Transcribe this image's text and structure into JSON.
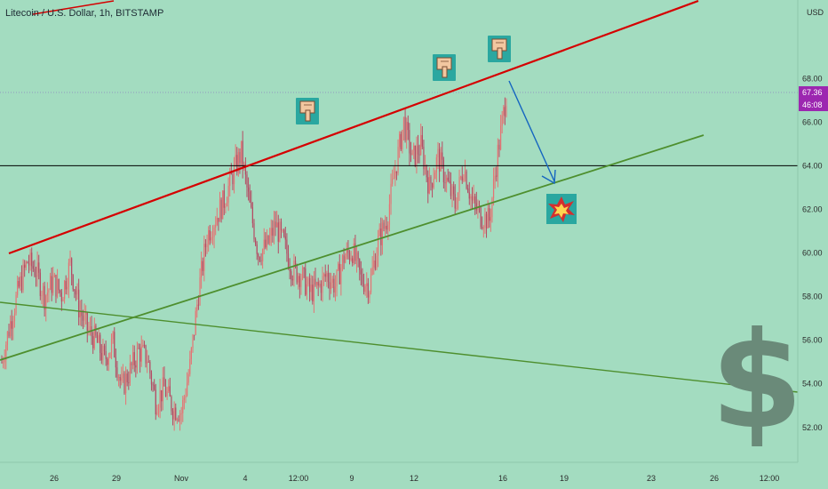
{
  "header": {
    "title": "Litecoin / U.S. Dollar, 1h, BITSTAMP"
  },
  "price_axis": {
    "unit": "USD",
    "current_price": "67.36",
    "countdown": "46:08",
    "current_price_color": "#9c27b0",
    "countdown_color": "#9c27b0"
  },
  "chart_data": {
    "type": "candlestick",
    "title": "Litecoin / U.S. Dollar, 1h, BITSTAMP",
    "y_unit": "USD",
    "ylim": [
      50.4,
      71.6
    ],
    "y_ticks": [
      52.0,
      54.0,
      56.0,
      58.0,
      60.0,
      62.0,
      64.0,
      66.0,
      68.0
    ],
    "x_ticks": [
      "26",
      "29",
      "Nov",
      "4",
      "12:00",
      "9",
      "12",
      "16",
      "19",
      "23",
      "26",
      "12:00"
    ],
    "last_price": 67.36,
    "price_path": [
      [
        0,
        55.0
      ],
      [
        6,
        56.8
      ],
      [
        12,
        58.4
      ],
      [
        18,
        59.6
      ],
      [
        24,
        59.2
      ],
      [
        30,
        58.0
      ],
      [
        36,
        58.7
      ],
      [
        42,
        58.1
      ],
      [
        48,
        59.5
      ],
      [
        54,
        57.5
      ],
      [
        60,
        56.5
      ],
      [
        66,
        56.0
      ],
      [
        72,
        55.1
      ],
      [
        78,
        55.9
      ],
      [
        84,
        53.8
      ],
      [
        90,
        54.6
      ],
      [
        96,
        55.5
      ],
      [
        102,
        55.2
      ],
      [
        108,
        53.2
      ],
      [
        114,
        53.8
      ],
      [
        120,
        52.9
      ],
      [
        126,
        52.7
      ],
      [
        132,
        54.8
      ],
      [
        138,
        58.2
      ],
      [
        144,
        60.8
      ],
      [
        150,
        61.6
      ],
      [
        156,
        62.4
      ],
      [
        162,
        63.6
      ],
      [
        168,
        64.6
      ],
      [
        174,
        62.1
      ],
      [
        180,
        60.0
      ],
      [
        186,
        60.3
      ],
      [
        192,
        61.3
      ],
      [
        198,
        60.4
      ],
      [
        204,
        59.2
      ],
      [
        210,
        59.0
      ],
      [
        216,
        58.2
      ],
      [
        222,
        58.4
      ],
      [
        228,
        59.0
      ],
      [
        234,
        58.5
      ],
      [
        240,
        59.8
      ],
      [
        246,
        60.1
      ],
      [
        252,
        58.8
      ],
      [
        258,
        58.5
      ],
      [
        264,
        60.5
      ],
      [
        270,
        61.5
      ],
      [
        276,
        63.8
      ],
      [
        282,
        66.0
      ],
      [
        288,
        64.3
      ],
      [
        294,
        64.9
      ],
      [
        300,
        63.0
      ],
      [
        306,
        64.4
      ],
      [
        312,
        63.3
      ],
      [
        318,
        62.2
      ],
      [
        324,
        64.0
      ],
      [
        330,
        62.3
      ],
      [
        336,
        61.7
      ],
      [
        342,
        61.5
      ],
      [
        348,
        64.6
      ],
      [
        354,
        67.3
      ]
    ],
    "trendlines": [
      {
        "name": "upper",
        "color": "#d50000",
        "from": [
          "26",
          59.75
        ],
        "to": [
          "12:00",
          71.1
        ]
      },
      {
        "name": "lower",
        "color": "#4e8f2e",
        "from": [
          "26",
          55.3
        ],
        "to": [
          "26",
          64.9
        ]
      },
      {
        "name": "descending",
        "color": "#4e8f2e",
        "from": [
          "26",
          58.0
        ],
        "to": [
          "12:00",
          53.75
        ]
      }
    ],
    "horizontal_lines": [
      {
        "value": 64.0,
        "color": "#000000"
      },
      {
        "value": 67.36,
        "color": "#7e57c2"
      }
    ],
    "projection_arrow": {
      "from": 67.36,
      "to": 62.8,
      "color": "#1565c0"
    },
    "annotations": [
      {
        "type": "emoji",
        "icon": "pointing-down-hand-icon",
        "near": "high",
        "value": 64.9
      },
      {
        "type": "emoji",
        "icon": "pointing-down-hand-icon",
        "near": "high",
        "value": 66.4
      },
      {
        "type": "emoji",
        "icon": "pointing-down-hand-icon",
        "near": "high",
        "value": 67.4
      },
      {
        "type": "emoji",
        "icon": "collision-icon",
        "near": "target",
        "value": 62.0
      },
      {
        "type": "symbol",
        "icon": "dollar-sign-icon",
        "value": 54.0
      }
    ],
    "grid": false,
    "legend": "none",
    "up_color": "#e57373",
    "down_color": "#b54a63",
    "colors": {
      "background": "#a3dcc0",
      "axis_text": "#2b2b2b",
      "dollar": "#6a8a79",
      "upper_trend": "#d50000",
      "lower_trend": "#4e8f2e",
      "arrow": "#1565c0"
    }
  }
}
